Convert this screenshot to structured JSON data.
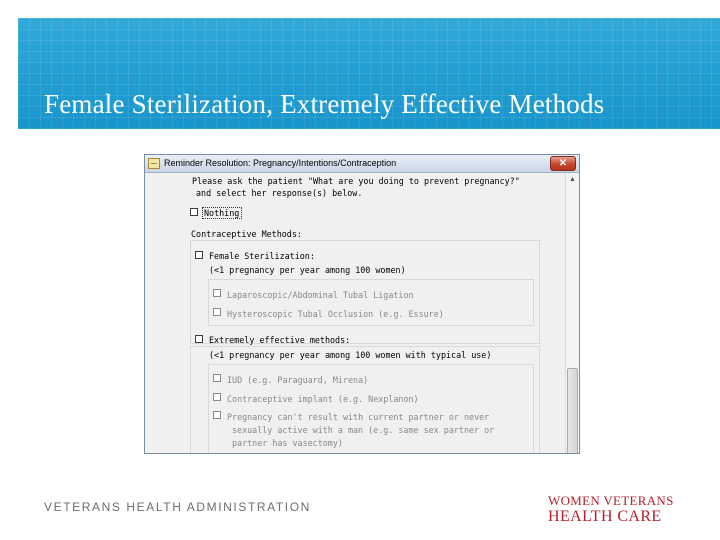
{
  "slide": {
    "title": "Female Sterilization, Extremely Effective Methods",
    "footer_left": "VETERANS HEALTH ADMINISTRATION",
    "logo_line1": "WOMEN VETERANS",
    "logo_line2": "HEALTH CARE"
  },
  "window": {
    "title": "Reminder Resolution: Pregnancy/Intentions/Contraception",
    "close_label": "✕",
    "scroll_up": "▲",
    "prompt_line1": "Please ask the patient \"What are you doing to prevent pregnancy?\"",
    "prompt_line2": "and select her response(s) below.",
    "nothing_label": "Nothing",
    "contraceptive_header": "Contraceptive Methods:",
    "female_sterilization": {
      "label": "Female Sterilization:",
      "sub": "(<1 pregnancy per year among 100 women)",
      "options": [
        "Laparoscopic/Abdominal Tubal Ligation",
        "Hysteroscopic Tubal Occlusion (e.g. Essure)"
      ]
    },
    "extremely_effective": {
      "label": "Extremely effective methods:",
      "sub": "(<1 pregnancy per year among 100 women with typical use)",
      "options": [
        "IUD (e.g. Paraguard, Mirena)",
        "Contraceptive implant (e.g. Nexplanon)",
        "Pregnancy can't result with current partner or never"
      ],
      "option3_line2": "sexually active with a man (e.g. same sex partner or",
      "option3_line3": "partner has vasectomy)"
    }
  }
}
